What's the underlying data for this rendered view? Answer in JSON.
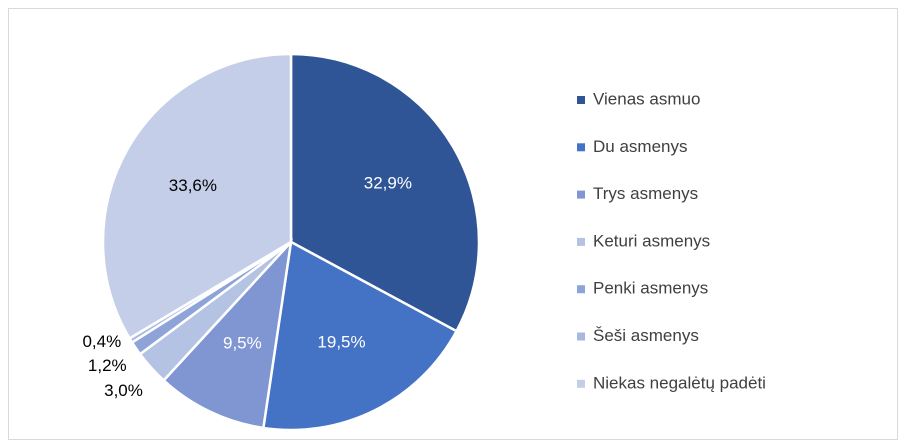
{
  "chart_data": {
    "type": "pie",
    "categories": [
      "Vienas asmuo",
      "Du asmenys",
      "Trys asmenys",
      "Keturi asmenys",
      "Penki asmenys",
      "Šeši asmenys",
      "Niekas negalėtų padėti"
    ],
    "values": [
      32.9,
      19.5,
      9.5,
      3.0,
      1.2,
      0.4,
      33.6
    ],
    "value_labels": [
      "32,9%",
      "19,5%",
      "9,5%",
      "3,0%",
      "1,2%",
      "0,4%",
      "33,6%"
    ],
    "colors": [
      "#2f5597",
      "#4472c4",
      "#7f96d3",
      "#b4c2e3",
      "#8ea4d9",
      "#a9b8e0",
      "#c4cee8"
    ],
    "legend": "right"
  }
}
